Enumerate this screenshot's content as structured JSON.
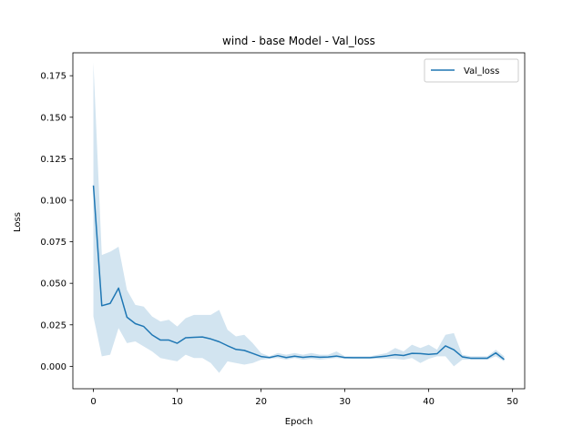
{
  "chart_data": {
    "type": "line",
    "title": "wind - base Model - Val_loss",
    "xlabel": "Epoch",
    "ylabel": "Loss",
    "xlim": [
      -2.45,
      51.45
    ],
    "ylim": [
      -0.0135,
      0.1888
    ],
    "xticks": [
      0,
      10,
      20,
      30,
      40,
      50
    ],
    "yticks": [
      0.0,
      0.025,
      0.05,
      0.075,
      0.1,
      0.125,
      0.15,
      0.175
    ],
    "ytick_labels": [
      "0.000",
      "0.025",
      "0.050",
      "0.075",
      "0.100",
      "0.125",
      "0.150",
      "0.175"
    ],
    "xtick_labels": [
      "0",
      "10",
      "20",
      "30",
      "40",
      "50"
    ],
    "legend_position": "upper-right",
    "grid": false,
    "series": [
      {
        "name": "Val_loss",
        "color": "#1f77b4",
        "band_color": "#1f77b4",
        "x": [
          0,
          1,
          2,
          3,
          4,
          5,
          6,
          7,
          8,
          9,
          10,
          11,
          12,
          13,
          14,
          15,
          16,
          17,
          18,
          19,
          20,
          21,
          22,
          23,
          24,
          25,
          26,
          27,
          28,
          29,
          30,
          31,
          32,
          33,
          34,
          35,
          36,
          37,
          38,
          39,
          40,
          41,
          42,
          43,
          44,
          45,
          46,
          47,
          48,
          49
        ],
        "values": [
          0.1089,
          0.0365,
          0.0379,
          0.0471,
          0.0296,
          0.0257,
          0.024,
          0.0189,
          0.0158,
          0.0158,
          0.0139,
          0.0172,
          0.0175,
          0.0177,
          0.0165,
          0.0148,
          0.0124,
          0.0102,
          0.0096,
          0.0078,
          0.0059,
          0.0053,
          0.0064,
          0.0053,
          0.0061,
          0.0054,
          0.0059,
          0.0055,
          0.0056,
          0.0062,
          0.0053,
          0.0052,
          0.0052,
          0.0052,
          0.0057,
          0.0062,
          0.007,
          0.0065,
          0.0078,
          0.0077,
          0.0072,
          0.0076,
          0.0123,
          0.01,
          0.0057,
          0.0049,
          0.0049,
          0.0049,
          0.0081,
          0.0041
        ],
        "lower": [
          0.03,
          0.006,
          0.007,
          0.023,
          0.014,
          0.015,
          0.012,
          0.009,
          0.005,
          0.004,
          0.003,
          0.007,
          0.005,
          0.005,
          0.002,
          -0.004,
          0.003,
          0.002,
          0.001,
          0.002,
          0.004,
          0.0045,
          0.005,
          0.004,
          0.005,
          0.004,
          0.0045,
          0.004,
          0.0045,
          0.005,
          0.0045,
          0.0045,
          0.0045,
          0.0045,
          0.0045,
          0.0045,
          0.0045,
          0.004,
          0.005,
          0.002,
          0.0045,
          0.006,
          0.006,
          0.0,
          0.004,
          0.004,
          0.004,
          0.004,
          0.006,
          0.003
        ],
        "upper": [
          0.183,
          0.067,
          0.069,
          0.072,
          0.046,
          0.037,
          0.036,
          0.03,
          0.027,
          0.028,
          0.024,
          0.029,
          0.031,
          0.031,
          0.031,
          0.034,
          0.022,
          0.018,
          0.019,
          0.014,
          0.008,
          0.006,
          0.008,
          0.007,
          0.008,
          0.007,
          0.008,
          0.007,
          0.007,
          0.009,
          0.006,
          0.006,
          0.006,
          0.006,
          0.007,
          0.008,
          0.011,
          0.009,
          0.013,
          0.011,
          0.013,
          0.01,
          0.019,
          0.02,
          0.007,
          0.006,
          0.006,
          0.006,
          0.01,
          0.006
        ]
      }
    ]
  }
}
